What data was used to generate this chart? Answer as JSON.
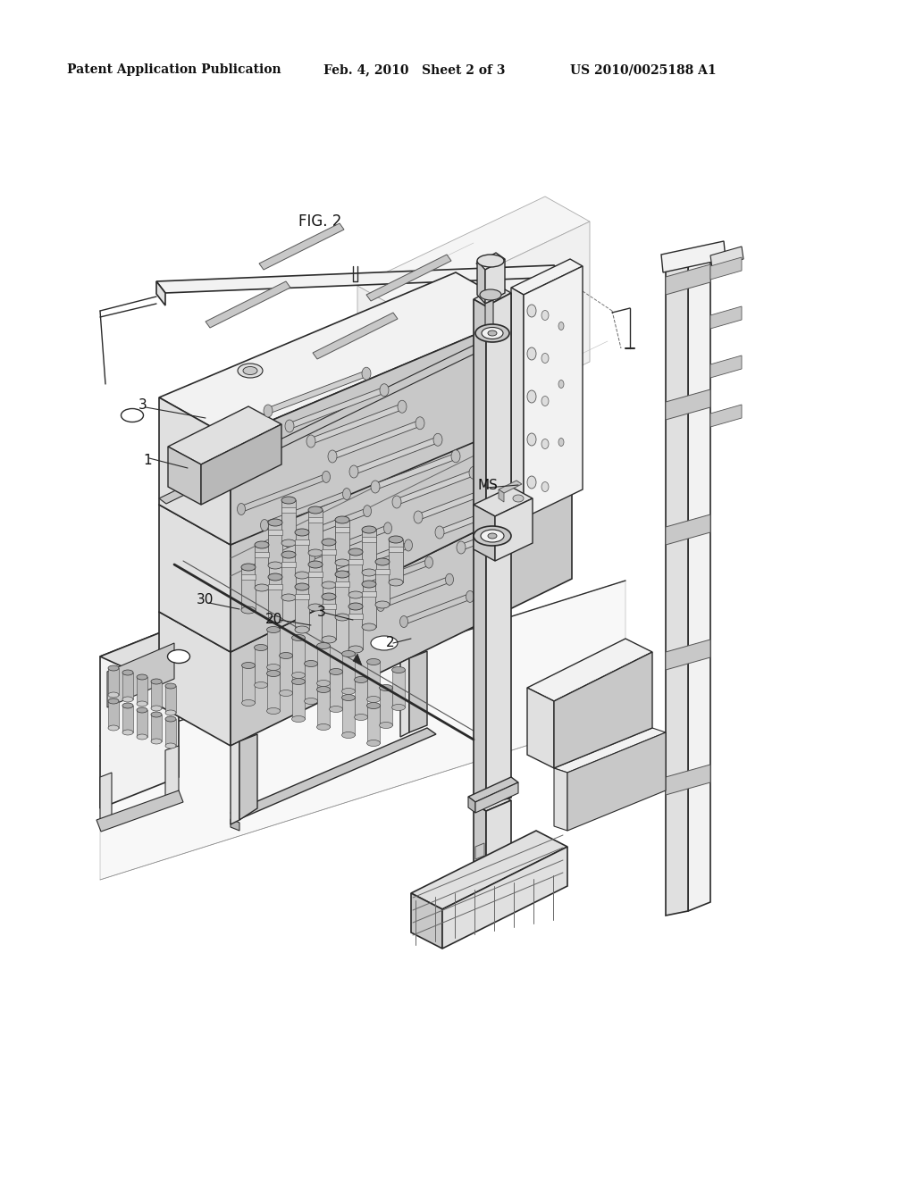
{
  "background_color": "#ffffff",
  "header_left": "Patent Application Publication",
  "header_center": "Feb. 4, 2010   Sheet 2 of 3",
  "header_right": "US 2010/0025188 A1",
  "fig_label": "FIG. 2",
  "gray": "#2a2a2a",
  "mid_gray": "#888888",
  "fill_light": "#f2f2f2",
  "fill_mid": "#e0e0e0",
  "fill_dark": "#c8c8c8",
  "fill_darker": "#b8b8b8"
}
